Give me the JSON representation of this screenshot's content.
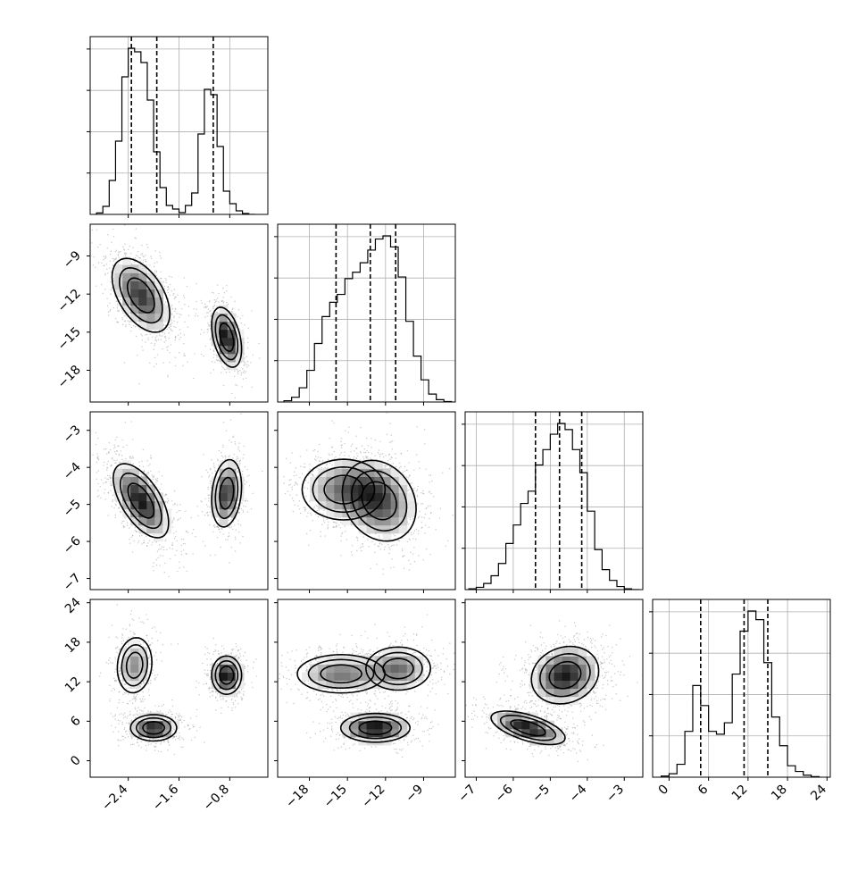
{
  "chart_data": {
    "type": "corner",
    "title": "",
    "grid": true,
    "parameters": [
      {
        "index": 0,
        "range": [
          -3.0,
          -0.2
        ],
        "ticks": [
          -2.4,
          -1.6,
          -0.8
        ],
        "tick_labels": [
          "−2.4",
          "−1.6",
          "−0.8"
        ]
      },
      {
        "index": 1,
        "range": [
          -20.5,
          -6.5
        ],
        "ticks": [
          -18,
          -15,
          -12,
          -9
        ],
        "tick_labels": [
          "−18",
          "−15",
          "−12",
          "−9"
        ]
      },
      {
        "index": 2,
        "range": [
          -7.3,
          -2.5
        ],
        "ticks": [
          -7,
          -6,
          -5,
          -4,
          -3
        ],
        "tick_labels": [
          "−7",
          "−6",
          "−5",
          "−4",
          "−3"
        ]
      },
      {
        "index": 3,
        "range": [
          -2.5,
          24.5
        ],
        "ticks": [
          0,
          6,
          12,
          18,
          24
        ],
        "tick_labels": [
          "0",
          "6",
          "12",
          "18",
          "24"
        ]
      }
    ],
    "quantile_lines": [
      [
        -2.35,
        -1.95,
        -1.06
      ],
      [
        -15.9,
        -13.2,
        -11.2
      ],
      [
        -5.4,
        -4.75,
        -4.15
      ],
      [
        4.8,
        11.4,
        15.0
      ]
    ],
    "histograms": [
      {
        "param": 0,
        "bin_edges": [
          -2.9,
          -2.8,
          -2.7,
          -2.6,
          -2.5,
          -2.4,
          -2.3,
          -2.2,
          -2.1,
          -2.0,
          -1.9,
          -1.8,
          -1.7,
          -1.6,
          -1.5,
          -1.4,
          -1.3,
          -1.2,
          -1.1,
          -1.0,
          -0.9,
          -0.8,
          -0.7,
          -0.6,
          -0.5,
          -0.4
        ],
        "counts": [
          0.8,
          4.5,
          19,
          41,
          77,
          93,
          91,
          85,
          64,
          35,
          15,
          5,
          3,
          1,
          5,
          12,
          45,
          70,
          67,
          38,
          13,
          6,
          2,
          0.5,
          0
        ]
      },
      {
        "param": 1,
        "bin_edges": [
          -20,
          -19.4,
          -18.8,
          -18.2,
          -17.6,
          -17.0,
          -16.4,
          -15.8,
          -15.2,
          -14.6,
          -14.0,
          -13.4,
          -12.8,
          -12.2,
          -11.6,
          -11.0,
          -10.4,
          -9.8,
          -9.2,
          -8.6,
          -8.0,
          -7.4,
          -6.8
        ],
        "counts": [
          0.8,
          3,
          9,
          20,
          37,
          54,
          63,
          68,
          78,
          82,
          88,
          96,
          103,
          105,
          98,
          79,
          51,
          29,
          14,
          5,
          1.5,
          0.3
        ]
      },
      {
        "param": 2,
        "bin_edges": [
          -7.2,
          -7.0,
          -6.8,
          -6.6,
          -6.4,
          -6.2,
          -6.0,
          -5.8,
          -5.6,
          -5.4,
          -5.2,
          -5.0,
          -4.8,
          -4.6,
          -4.4,
          -4.2,
          -4.0,
          -3.8,
          -3.6,
          -3.4,
          -3.2,
          -3.0,
          -2.8,
          -2.6
        ],
        "counts": [
          0.5,
          1.5,
          4,
          9,
          17,
          30,
          42,
          56,
          64,
          81,
          91,
          101,
          108,
          104,
          91,
          76,
          51,
          26,
          13,
          6,
          2,
          0.5,
          0
        ]
      },
      {
        "param": 3,
        "bin_edges": [
          -1.2,
          0,
          1.2,
          2.4,
          3.6,
          4.8,
          6.0,
          7.2,
          8.4,
          9.6,
          10.8,
          12.0,
          13.2,
          14.4,
          15.6,
          16.8,
          18.0,
          19.2,
          20.4,
          21.6,
          22.8
        ],
        "counts": [
          0.4,
          1.2,
          4.5,
          16,
          32,
          25,
          16,
          15,
          19,
          36,
          51,
          58,
          55,
          40,
          21,
          11,
          4,
          2,
          0.7,
          0.2
        ]
      }
    ],
    "pair_contours": [
      {
        "x": 0,
        "y": 1,
        "modes": [
          {
            "cx": -2.2,
            "cy": -12.1,
            "sx": 0.25,
            "sy": 1.6,
            "rho": -0.5,
            "w": 0.65
          },
          {
            "cx": -0.85,
            "cy": -15.4,
            "sx": 0.13,
            "sy": 1.3,
            "rho": -0.4,
            "w": 0.35
          }
        ]
      },
      {
        "x": 0,
        "y": 2,
        "modes": [
          {
            "cx": -2.2,
            "cy": -4.9,
            "sx": 0.24,
            "sy": 0.55,
            "rho": -0.6,
            "w": 0.65
          },
          {
            "cx": -0.85,
            "cy": -4.7,
            "sx": 0.13,
            "sy": 0.5,
            "rho": 0.2,
            "w": 0.35
          }
        ]
      },
      {
        "x": 0,
        "y": 3,
        "modes": [
          {
            "cx": -2.3,
            "cy": 14.5,
            "sx": 0.15,
            "sy": 2.3,
            "rho": 0.1,
            "w": 0.3
          },
          {
            "cx": -2.0,
            "cy": 5.0,
            "sx": 0.2,
            "sy": 1.1,
            "rho": 0.0,
            "w": 0.35
          },
          {
            "cx": -0.85,
            "cy": 13.0,
            "sx": 0.13,
            "sy": 1.6,
            "rho": 0.0,
            "w": 0.35
          }
        ]
      },
      {
        "x": 1,
        "y": 2,
        "modes": [
          {
            "cx": -15.3,
            "cy": -4.6,
            "sx": 1.8,
            "sy": 0.45,
            "rho": 0.0,
            "w": 0.4
          },
          {
            "cx": -12.5,
            "cy": -4.9,
            "sx": 1.6,
            "sy": 0.6,
            "rho": -0.2,
            "w": 0.6
          }
        ]
      },
      {
        "x": 1,
        "y": 3,
        "modes": [
          {
            "cx": -15.5,
            "cy": 13.2,
            "sx": 1.9,
            "sy": 1.6,
            "rho": 0.0,
            "w": 0.35
          },
          {
            "cx": -11.0,
            "cy": 14.0,
            "sx": 1.4,
            "sy": 1.8,
            "rho": 0.0,
            "w": 0.3
          },
          {
            "cx": -12.8,
            "cy": 5.0,
            "sx": 1.5,
            "sy": 1.2,
            "rho": 0.0,
            "w": 0.35
          }
        ]
      },
      {
        "x": 2,
        "y": 3,
        "modes": [
          {
            "cx": -4.6,
            "cy": 13.0,
            "sx": 0.5,
            "sy": 2.4,
            "rho": 0.15,
            "w": 0.65
          },
          {
            "cx": -5.6,
            "cy": 5.0,
            "sx": 0.55,
            "sy": 1.4,
            "rho": -0.6,
            "w": 0.35
          }
        ]
      }
    ]
  }
}
